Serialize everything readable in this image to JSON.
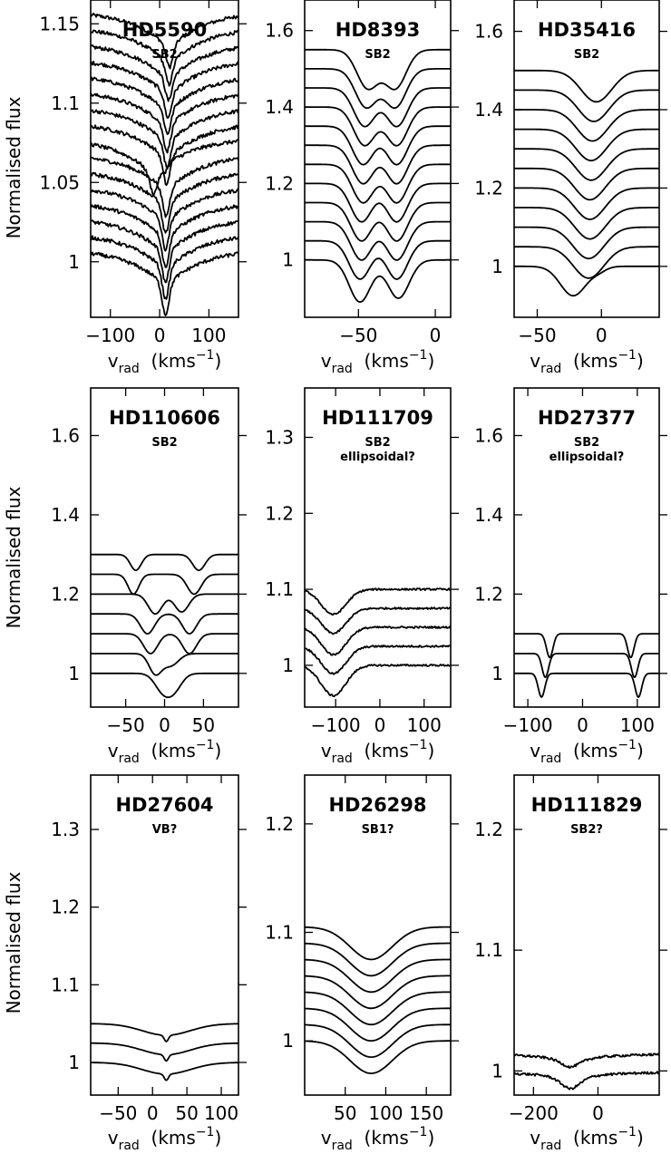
{
  "figure": {
    "ylabel": "Normalised flux",
    "xlabel_main": "v",
    "xlabel_sub": "rad",
    "xlabel_units": "(kms",
    "xlabel_exp": "−1",
    "xlabel_close": ")"
  },
  "chart_data": [
    {
      "type": "line",
      "title": "HD5590",
      "subtitle": "SB2",
      "xlim": [
        -140,
        160
      ],
      "ylim": [
        0.965,
        1.165
      ],
      "xticks": [
        -100,
        0,
        100
      ],
      "xtick_labels": [
        "−100",
        "0",
        "100"
      ],
      "yticks": [
        1,
        1.05,
        1.1,
        1.15
      ],
      "ytick_labels": [
        "1",
        "1.05",
        "1.1",
        "1.15"
      ],
      "yticks_side": "left",
      "series": [
        {
          "offset": 1.15,
          "tilt": 0.024,
          "noise": 0.0012,
          "dips": [
            [
              20,
              0.012,
              7
            ]
          ]
        },
        {
          "offset": 1.14,
          "tilt": 0.024,
          "noise": 0.0012,
          "dips": [
            [
              19,
              0.013,
              7
            ]
          ]
        },
        {
          "offset": 1.13,
          "tilt": 0.024,
          "noise": 0.0012,
          "dips": [
            [
              18,
              0.013,
              7
            ]
          ]
        },
        {
          "offset": 1.12,
          "tilt": 0.024,
          "noise": 0.0012,
          "dips": [
            [
              17,
              0.014,
              7
            ]
          ]
        },
        {
          "offset": 1.11,
          "tilt": 0.024,
          "noise": 0.0012,
          "dips": [
            [
              16,
              0.014,
              7
            ]
          ]
        },
        {
          "offset": 1.1,
          "tilt": 0.024,
          "noise": 0.0012,
          "dips": [
            [
              15,
              0.015,
              7
            ]
          ]
        },
        {
          "offset": 1.09,
          "tilt": 0.024,
          "noise": 0.0012,
          "dips": [
            [
              15,
              0.015,
              7
            ]
          ]
        },
        {
          "offset": 1.08,
          "tilt": 0.024,
          "noise": 0.0012,
          "dips": [
            [
              14,
              0.016,
              7
            ]
          ]
        },
        {
          "offset": 1.07,
          "tilt": 0.024,
          "noise": 0.0012,
          "dips": [
            [
              -12,
              0.012,
              8
            ],
            [
              10,
              0.004,
              6
            ]
          ]
        },
        {
          "offset": 1.06,
          "tilt": 0.024,
          "noise": 0.0012,
          "dips": [
            [
              13,
              0.016,
              7
            ]
          ]
        },
        {
          "offset": 1.05,
          "tilt": 0.024,
          "noise": 0.0012,
          "dips": [
            [
              12,
              0.017,
              7
            ]
          ]
        },
        {
          "offset": 1.04,
          "tilt": 0.024,
          "noise": 0.0012,
          "dips": [
            [
              12,
              0.017,
              7
            ]
          ]
        },
        {
          "offset": 1.03,
          "tilt": 0.024,
          "noise": 0.0012,
          "dips": [
            [
              12,
              0.018,
              7
            ]
          ]
        },
        {
          "offset": 1.02,
          "tilt": 0.024,
          "noise": 0.0012,
          "dips": [
            [
              12,
              0.018,
              7
            ]
          ]
        },
        {
          "offset": 1.01,
          "tilt": 0.024,
          "noise": 0.0012,
          "dips": [
            [
              12,
              0.018,
              7
            ]
          ]
        },
        {
          "offset": 1.0,
          "tilt": 0.024,
          "noise": 0.0012,
          "dips": [
            [
              12,
              0.018,
              7
            ]
          ]
        }
      ]
    },
    {
      "type": "line",
      "title": "HD8393",
      "subtitle": "SB2",
      "xlim": [
        -85,
        10
      ],
      "ylim": [
        0.85,
        1.68
      ],
      "xticks": [
        -50,
        0
      ],
      "xtick_labels": [
        "−50",
        "0"
      ],
      "yticks": [
        1,
        1.2,
        1.4,
        1.6
      ],
      "ytick_labels": [
        "1",
        "1.2",
        "1.4",
        "1.6"
      ],
      "yticks_side": "left",
      "series": [
        {
          "offset": 1.55,
          "dips": [
            [
              -44,
              0.1,
              7
            ],
            [
              -26,
              0.1,
              7
            ]
          ]
        },
        {
          "offset": 1.5,
          "dips": [
            [
              -45,
              0.1,
              7
            ],
            [
              -26,
              0.1,
              7
            ]
          ]
        },
        {
          "offset": 1.45,
          "dips": [
            [
              -46,
              0.1,
              7
            ],
            [
              -25,
              0.1,
              7
            ]
          ]
        },
        {
          "offset": 1.4,
          "dips": [
            [
              -46,
              0.1,
              7
            ],
            [
              -25,
              0.1,
              7
            ]
          ]
        },
        {
          "offset": 1.35,
          "dips": [
            [
              -47,
              0.1,
              7
            ],
            [
              -25,
              0.1,
              7
            ]
          ]
        },
        {
          "offset": 1.3,
          "dips": [
            [
              -47,
              0.1,
              7
            ],
            [
              -25,
              0.1,
              7
            ]
          ]
        },
        {
          "offset": 1.25,
          "dips": [
            [
              -47,
              0.1,
              7
            ],
            [
              -25,
              0.1,
              7
            ]
          ]
        },
        {
          "offset": 1.2,
          "dips": [
            [
              -48,
              0.1,
              7
            ],
            [
              -25,
              0.1,
              7
            ]
          ]
        },
        {
          "offset": 1.15,
          "dips": [
            [
              -48,
              0.1,
              7
            ],
            [
              -25,
              0.1,
              7
            ]
          ]
        },
        {
          "offset": 1.1,
          "dips": [
            [
              -48,
              0.1,
              7
            ],
            [
              -25,
              0.1,
              7
            ]
          ]
        },
        {
          "offset": 1.05,
          "dips": [
            [
              -49,
              0.1,
              7
            ],
            [
              -25,
              0.1,
              7
            ]
          ]
        },
        {
          "offset": 1.0,
          "dips": [
            [
              -49,
              0.11,
              7
            ],
            [
              -24,
              0.1,
              7
            ]
          ]
        }
      ]
    },
    {
      "type": "line",
      "title": "HD35416",
      "subtitle": "SB2",
      "xlim": [
        -68,
        45
      ],
      "ylim": [
        0.87,
        1.68
      ],
      "xticks": [
        -50,
        0
      ],
      "xtick_labels": [
        "−50",
        "0"
      ],
      "yticks": [
        1,
        1.2,
        1.4,
        1.6
      ],
      "ytick_labels": [
        "1",
        "1.2",
        "1.4",
        "1.6"
      ],
      "yticks_side": "left",
      "series": [
        {
          "offset": 1.5,
          "dips": [
            [
              -4,
              0.08,
              12
            ]
          ]
        },
        {
          "offset": 1.45,
          "dips": [
            [
              -6,
              0.08,
              12
            ]
          ]
        },
        {
          "offset": 1.4,
          "dips": [
            [
              -7,
              0.08,
              12
            ]
          ]
        },
        {
          "offset": 1.35,
          "dips": [
            [
              -8,
              0.08,
              12
            ]
          ]
        },
        {
          "offset": 1.3,
          "dips": [
            [
              -8,
              0.08,
              12
            ]
          ]
        },
        {
          "offset": 1.25,
          "dips": [
            [
              -9,
              0.08,
              12
            ]
          ]
        },
        {
          "offset": 1.2,
          "dips": [
            [
              -9,
              0.08,
              12
            ]
          ]
        },
        {
          "offset": 1.15,
          "dips": [
            [
              -9,
              0.08,
              12
            ]
          ]
        },
        {
          "offset": 1.1,
          "dips": [
            [
              -10,
              0.08,
              12
            ]
          ]
        },
        {
          "offset": 1.05,
          "dips": [
            [
              -10,
              0.08,
              12
            ]
          ]
        },
        {
          "offset": 1.0,
          "dips": [
            [
              -22,
              0.075,
              10
            ],
            [
              -2,
              0.01,
              6
            ]
          ]
        }
      ]
    },
    {
      "type": "line",
      "title": "HD110606",
      "subtitle": "SB2",
      "xlim": [
        -95,
        95
      ],
      "ylim": [
        0.915,
        1.72
      ],
      "xticks": [
        -50,
        0,
        50
      ],
      "xtick_labels": [
        "−50",
        "0",
        "50"
      ],
      "yticks": [
        1,
        1.2,
        1.4,
        1.6
      ],
      "ytick_labels": [
        "1",
        "1.2",
        "1.4",
        "1.6"
      ],
      "yticks_side": "left",
      "series": [
        {
          "offset": 1.3,
          "dips": [
            [
              -37,
              0.04,
              7
            ],
            [
              44,
              0.04,
              8
            ]
          ]
        },
        {
          "offset": 1.25,
          "dips": [
            [
              -40,
              0.05,
              7
            ],
            [
              38,
              0.05,
              9
            ]
          ]
        },
        {
          "offset": 1.2,
          "dips": [
            [
              -12,
              0.05,
              9
            ],
            [
              22,
              0.045,
              9
            ]
          ]
        },
        {
          "offset": 1.15,
          "dips": [
            [
              -22,
              0.05,
              9
            ],
            [
              32,
              0.05,
              9
            ]
          ]
        },
        {
          "offset": 1.1,
          "dips": [
            [
              -18,
              0.05,
              9
            ],
            [
              32,
              0.05,
              9
            ]
          ]
        },
        {
          "offset": 1.05,
          "dips": [
            [
              -12,
              0.05,
              8
            ],
            [
              8,
              0.03,
              10
            ]
          ]
        },
        {
          "offset": 1.0,
          "dips": [
            [
              -3,
              0.04,
              10
            ],
            [
              12,
              0.04,
              10
            ]
          ]
        }
      ]
    },
    {
      "type": "line",
      "title": "HD111709",
      "subtitle": "SB2",
      "subtitle2": "ellipsoidal?",
      "xlim": [
        -170,
        160
      ],
      "ylim": [
        0.945,
        1.365
      ],
      "xticks": [
        -100,
        0,
        100
      ],
      "xtick_labels": [
        "−100",
        "0",
        "100"
      ],
      "yticks": [
        1,
        1.1,
        1.2,
        1.3
      ],
      "ytick_labels": [
        "1",
        "1.1",
        "1.2",
        "1.3"
      ],
      "yticks_side": "left",
      "series": [
        {
          "offset": 1.1,
          "noise": 0.0012,
          "dips": [
            [
              -105,
              0.033,
              28
            ]
          ],
          "tilt": 0
        },
        {
          "offset": 1.075,
          "noise": 0.0012,
          "dips": [
            [
              -105,
              0.033,
              28
            ]
          ],
          "tilt": 0
        },
        {
          "offset": 1.05,
          "noise": 0.0012,
          "dips": [
            [
              -105,
              0.036,
              28
            ]
          ],
          "tilt": 0
        },
        {
          "offset": 1.025,
          "noise": 0.0012,
          "dips": [
            [
              -105,
              0.036,
              28
            ]
          ],
          "tilt": 0
        },
        {
          "offset": 1.0,
          "noise": 0.0012,
          "dips": [
            [
              -105,
              0.04,
              28
            ]
          ],
          "tilt": 0
        }
      ]
    },
    {
      "type": "line",
      "title": "HD27377",
      "subtitle": "SB2",
      "subtitle2": "ellipsoidal?",
      "xlim": [
        -125,
        140
      ],
      "ylim": [
        0.915,
        1.72
      ],
      "xticks": [
        -100,
        0,
        100
      ],
      "xtick_labels": [
        "−100",
        "0",
        "100"
      ],
      "yticks": [
        1,
        1.2,
        1.4,
        1.6
      ],
      "ytick_labels": [
        "1",
        "1.2",
        "1.4",
        "1.6"
      ],
      "yticks_side": "left",
      "series": [
        {
          "offset": 1.1,
          "dips": [
            [
              -60,
              0.06,
              6
            ],
            [
              88,
              0.06,
              6
            ]
          ]
        },
        {
          "offset": 1.05,
          "dips": [
            [
              -68,
              0.06,
              6
            ],
            [
              95,
              0.06,
              6
            ]
          ]
        },
        {
          "offset": 1.0,
          "dips": [
            [
              -75,
              0.06,
              6
            ],
            [
              102,
              0.06,
              6
            ]
          ]
        }
      ]
    },
    {
      "type": "line",
      "title": "HD27604",
      "subtitle": "VB?",
      "xlim": [
        -90,
        125
      ],
      "ylim": [
        0.958,
        1.37
      ],
      "xticks": [
        -50,
        0,
        50,
        100
      ],
      "xtick_labels": [
        "−50",
        "0",
        "50",
        "100"
      ],
      "yticks": [
        1,
        1.1,
        1.2,
        1.3
      ],
      "ytick_labels": [
        "1",
        "1.1",
        "1.2",
        "1.3"
      ],
      "yticks_side": "left",
      "series": [
        {
          "offset": 1.05,
          "dips": [
            [
              20,
              0.015,
              35
            ],
            [
              20,
              0.008,
              3
            ]
          ]
        },
        {
          "offset": 1.025,
          "dips": [
            [
              20,
              0.015,
              35
            ],
            [
              20,
              0.008,
              3
            ]
          ]
        },
        {
          "offset": 1.0,
          "dips": [
            [
              20,
              0.015,
              35
            ],
            [
              20,
              0.008,
              3
            ]
          ]
        }
      ]
    },
    {
      "type": "line",
      "title": "HD26298",
      "subtitle": "SB1?",
      "xlim": [
        0,
        180
      ],
      "ylim": [
        0.95,
        1.245
      ],
      "xticks": [
        50,
        100,
        150
      ],
      "xtick_labels": [
        "50",
        "100",
        "150"
      ],
      "yticks": [
        1,
        1.1,
        1.2
      ],
      "ytick_labels": [
        "1",
        "1.1",
        "1.2"
      ],
      "yticks_side": "left",
      "series": [
        {
          "offset": 1.105,
          "dips": [
            [
              82,
              0.03,
              26
            ]
          ]
        },
        {
          "offset": 1.09,
          "dips": [
            [
              82,
              0.03,
              26
            ]
          ]
        },
        {
          "offset": 1.075,
          "dips": [
            [
              82,
              0.03,
              26
            ]
          ]
        },
        {
          "offset": 1.06,
          "dips": [
            [
              82,
              0.03,
              26
            ]
          ]
        },
        {
          "offset": 1.045,
          "dips": [
            [
              82,
              0.03,
              26
            ]
          ]
        },
        {
          "offset": 1.03,
          "dips": [
            [
              82,
              0.03,
              26
            ]
          ]
        },
        {
          "offset": 1.015,
          "dips": [
            [
              82,
              0.03,
              26
            ]
          ]
        },
        {
          "offset": 1.0,
          "dips": [
            [
              82,
              0.03,
              26
            ]
          ]
        }
      ]
    },
    {
      "type": "line",
      "title": "HD111829",
      "subtitle": "SB2?",
      "xlim": [
        -260,
        190
      ],
      "ylim": [
        0.98,
        1.245
      ],
      "xticks": [
        -200,
        0
      ],
      "xtick_labels": [
        "−200",
        "0"
      ],
      "yticks": [
        1,
        1.1,
        1.2
      ],
      "ytick_labels": [
        "1",
        "1.1",
        "1.2"
      ],
      "yticks_side": "left",
      "series": [
        {
          "offset": 1.012,
          "tilt": 0.006,
          "noise": 0.001,
          "dips": [
            [
              -85,
              0.005,
              30
            ]
          ]
        },
        {
          "offset": 0.997,
          "tilt": 0.006,
          "noise": 0.001,
          "dips": [
            [
              -85,
              0.008,
              30
            ]
          ]
        }
      ]
    }
  ]
}
